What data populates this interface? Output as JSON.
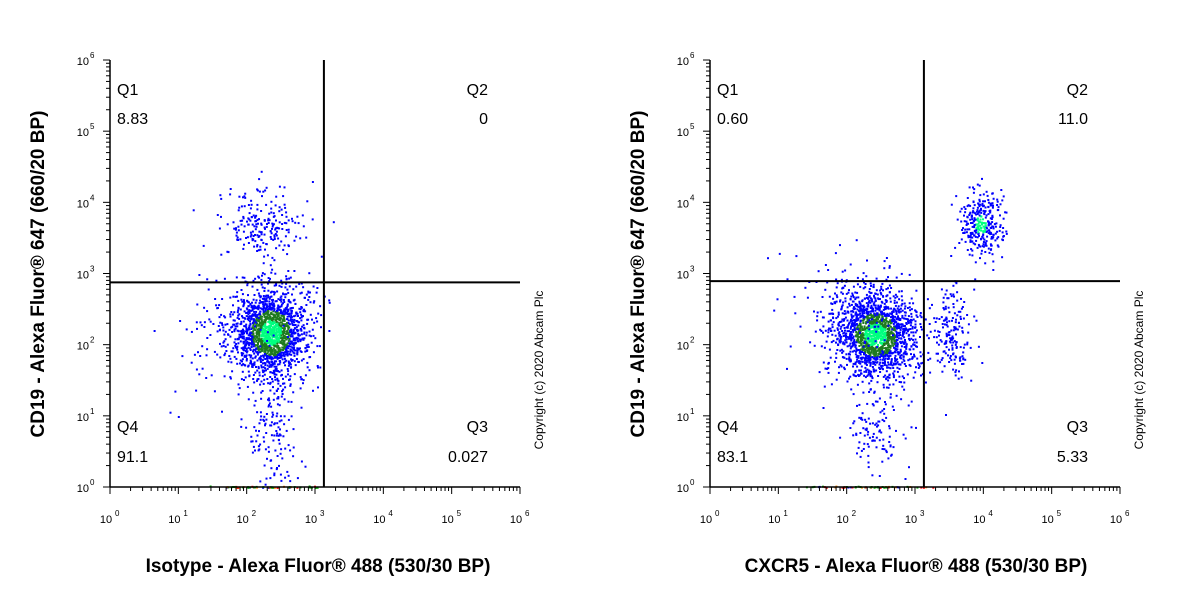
{
  "colors": {
    "axis": "#000000",
    "gate": "#000000",
    "density_low": "#0000ff",
    "density_mid": "#1e7a1e",
    "density_high": "#00ff7f"
  },
  "chart_data": [
    {
      "type": "scatter",
      "subtype": "flow cytometry density dot plot",
      "xlabel": "Isotype - Alexa Fluor® 488 (530/30 BP)",
      "ylabel": "CD19 - Alexa Fluor® 647 (660/20 BP)",
      "copyright": "Copyright (c) 2020 Abcam Plc",
      "xscale": "log",
      "yscale": "log",
      "xlim": [
        1,
        1000000
      ],
      "ylim": [
        1,
        1000000
      ],
      "x_ticks": [
        {
          "base": "10",
          "exp": "0"
        },
        {
          "base": "10",
          "exp": "1"
        },
        {
          "base": "10",
          "exp": "2"
        },
        {
          "base": "10",
          "exp": "3"
        },
        {
          "base": "10",
          "exp": "4"
        },
        {
          "base": "10",
          "exp": "5"
        },
        {
          "base": "10",
          "exp": "6"
        }
      ],
      "y_ticks": [
        {
          "base": "10",
          "exp": "0"
        },
        {
          "base": "10",
          "exp": "1"
        },
        {
          "base": "10",
          "exp": "2"
        },
        {
          "base": "10",
          "exp": "3"
        },
        {
          "base": "10",
          "exp": "4"
        },
        {
          "base": "10",
          "exp": "5"
        },
        {
          "base": "10",
          "exp": "6"
        }
      ],
      "gate": {
        "x": 1350,
        "y": 750
      },
      "quadrants": [
        {
          "name": "Q1",
          "value": "8.83",
          "position": "top-left"
        },
        {
          "name": "Q2",
          "value": "0",
          "position": "top-right"
        },
        {
          "name": "Q3",
          "value": "0.027",
          "position": "bottom-right"
        },
        {
          "name": "Q4",
          "value": "91.1",
          "position": "bottom-left"
        }
      ],
      "populations": [
        {
          "name": "main",
          "center_x": 220,
          "center_y": 150,
          "spread_x_decades": 0.28,
          "spread_y_decades": 0.32,
          "count": 1700
        },
        {
          "name": "cd19-high",
          "center_x": 160,
          "center_y": 5000,
          "spread_x_decades": 0.3,
          "spread_y_decades": 0.28,
          "count": 210
        },
        {
          "name": "low-tail",
          "center_x": 220,
          "center_y": 6,
          "spread_x_decades": 0.2,
          "spread_y_decades": 0.4,
          "count": 140
        },
        {
          "name": "sparse",
          "center_x": 60,
          "center_y": 150,
          "spread_x_decades": 0.45,
          "spread_y_decades": 0.45,
          "count": 130
        },
        {
          "name": "baseline",
          "center_x": 200,
          "center_y": 1.02,
          "spread_x_decades": 0.4,
          "spread_y_decades": 0.005,
          "count": 60
        }
      ]
    },
    {
      "type": "scatter",
      "subtype": "flow cytometry density dot plot",
      "xlabel": "CXCR5 - Alexa Fluor® 488 (530/30 BP)",
      "ylabel": "CD19 - Alexa Fluor® 647 (660/20 BP)",
      "copyright": "Copyright (c) 2020 Abcam Plc",
      "xscale": "log",
      "yscale": "log",
      "xlim": [
        1,
        1000000
      ],
      "ylim": [
        1,
        1000000
      ],
      "x_ticks": [
        {
          "base": "10",
          "exp": "0"
        },
        {
          "base": "10",
          "exp": "1"
        },
        {
          "base": "10",
          "exp": "2"
        },
        {
          "base": "10",
          "exp": "3"
        },
        {
          "base": "10",
          "exp": "4"
        },
        {
          "base": "10",
          "exp": "5"
        },
        {
          "base": "10",
          "exp": "6"
        }
      ],
      "y_ticks": [
        {
          "base": "10",
          "exp": "0"
        },
        {
          "base": "10",
          "exp": "1"
        },
        {
          "base": "10",
          "exp": "2"
        },
        {
          "base": "10",
          "exp": "3"
        },
        {
          "base": "10",
          "exp": "4"
        },
        {
          "base": "10",
          "exp": "5"
        },
        {
          "base": "10",
          "exp": "6"
        }
      ],
      "gate": {
        "x": 1350,
        "y": 780
      },
      "quadrants": [
        {
          "name": "Q1",
          "value": "0.60",
          "position": "top-left"
        },
        {
          "name": "Q2",
          "value": "11.0",
          "position": "top-right"
        },
        {
          "name": "Q3",
          "value": "5.33",
          "position": "bottom-right"
        },
        {
          "name": "Q4",
          "value": "83.1",
          "position": "bottom-left"
        }
      ],
      "populations": [
        {
          "name": "main",
          "center_x": 260,
          "center_y": 140,
          "spread_x_decades": 0.3,
          "spread_y_decades": 0.3,
          "count": 1700
        },
        {
          "name": "cxcr5-cd19-high",
          "center_x": 9000,
          "center_y": 5000,
          "spread_x_decades": 0.16,
          "spread_y_decades": 0.26,
          "count": 320
        },
        {
          "name": "cxcr5-cd19-low",
          "center_x": 3500,
          "center_y": 150,
          "spread_x_decades": 0.15,
          "spread_y_decades": 0.35,
          "count": 170
        },
        {
          "name": "low-tail",
          "center_x": 260,
          "center_y": 7,
          "spread_x_decades": 0.2,
          "spread_y_decades": 0.35,
          "count": 110
        },
        {
          "name": "sparse",
          "center_x": 100,
          "center_y": 200,
          "spread_x_decades": 0.5,
          "spread_y_decades": 0.5,
          "count": 160
        },
        {
          "name": "baseline",
          "center_x": 200,
          "center_y": 1.02,
          "spread_x_decades": 0.45,
          "spread_y_decades": 0.005,
          "count": 60
        }
      ]
    }
  ]
}
